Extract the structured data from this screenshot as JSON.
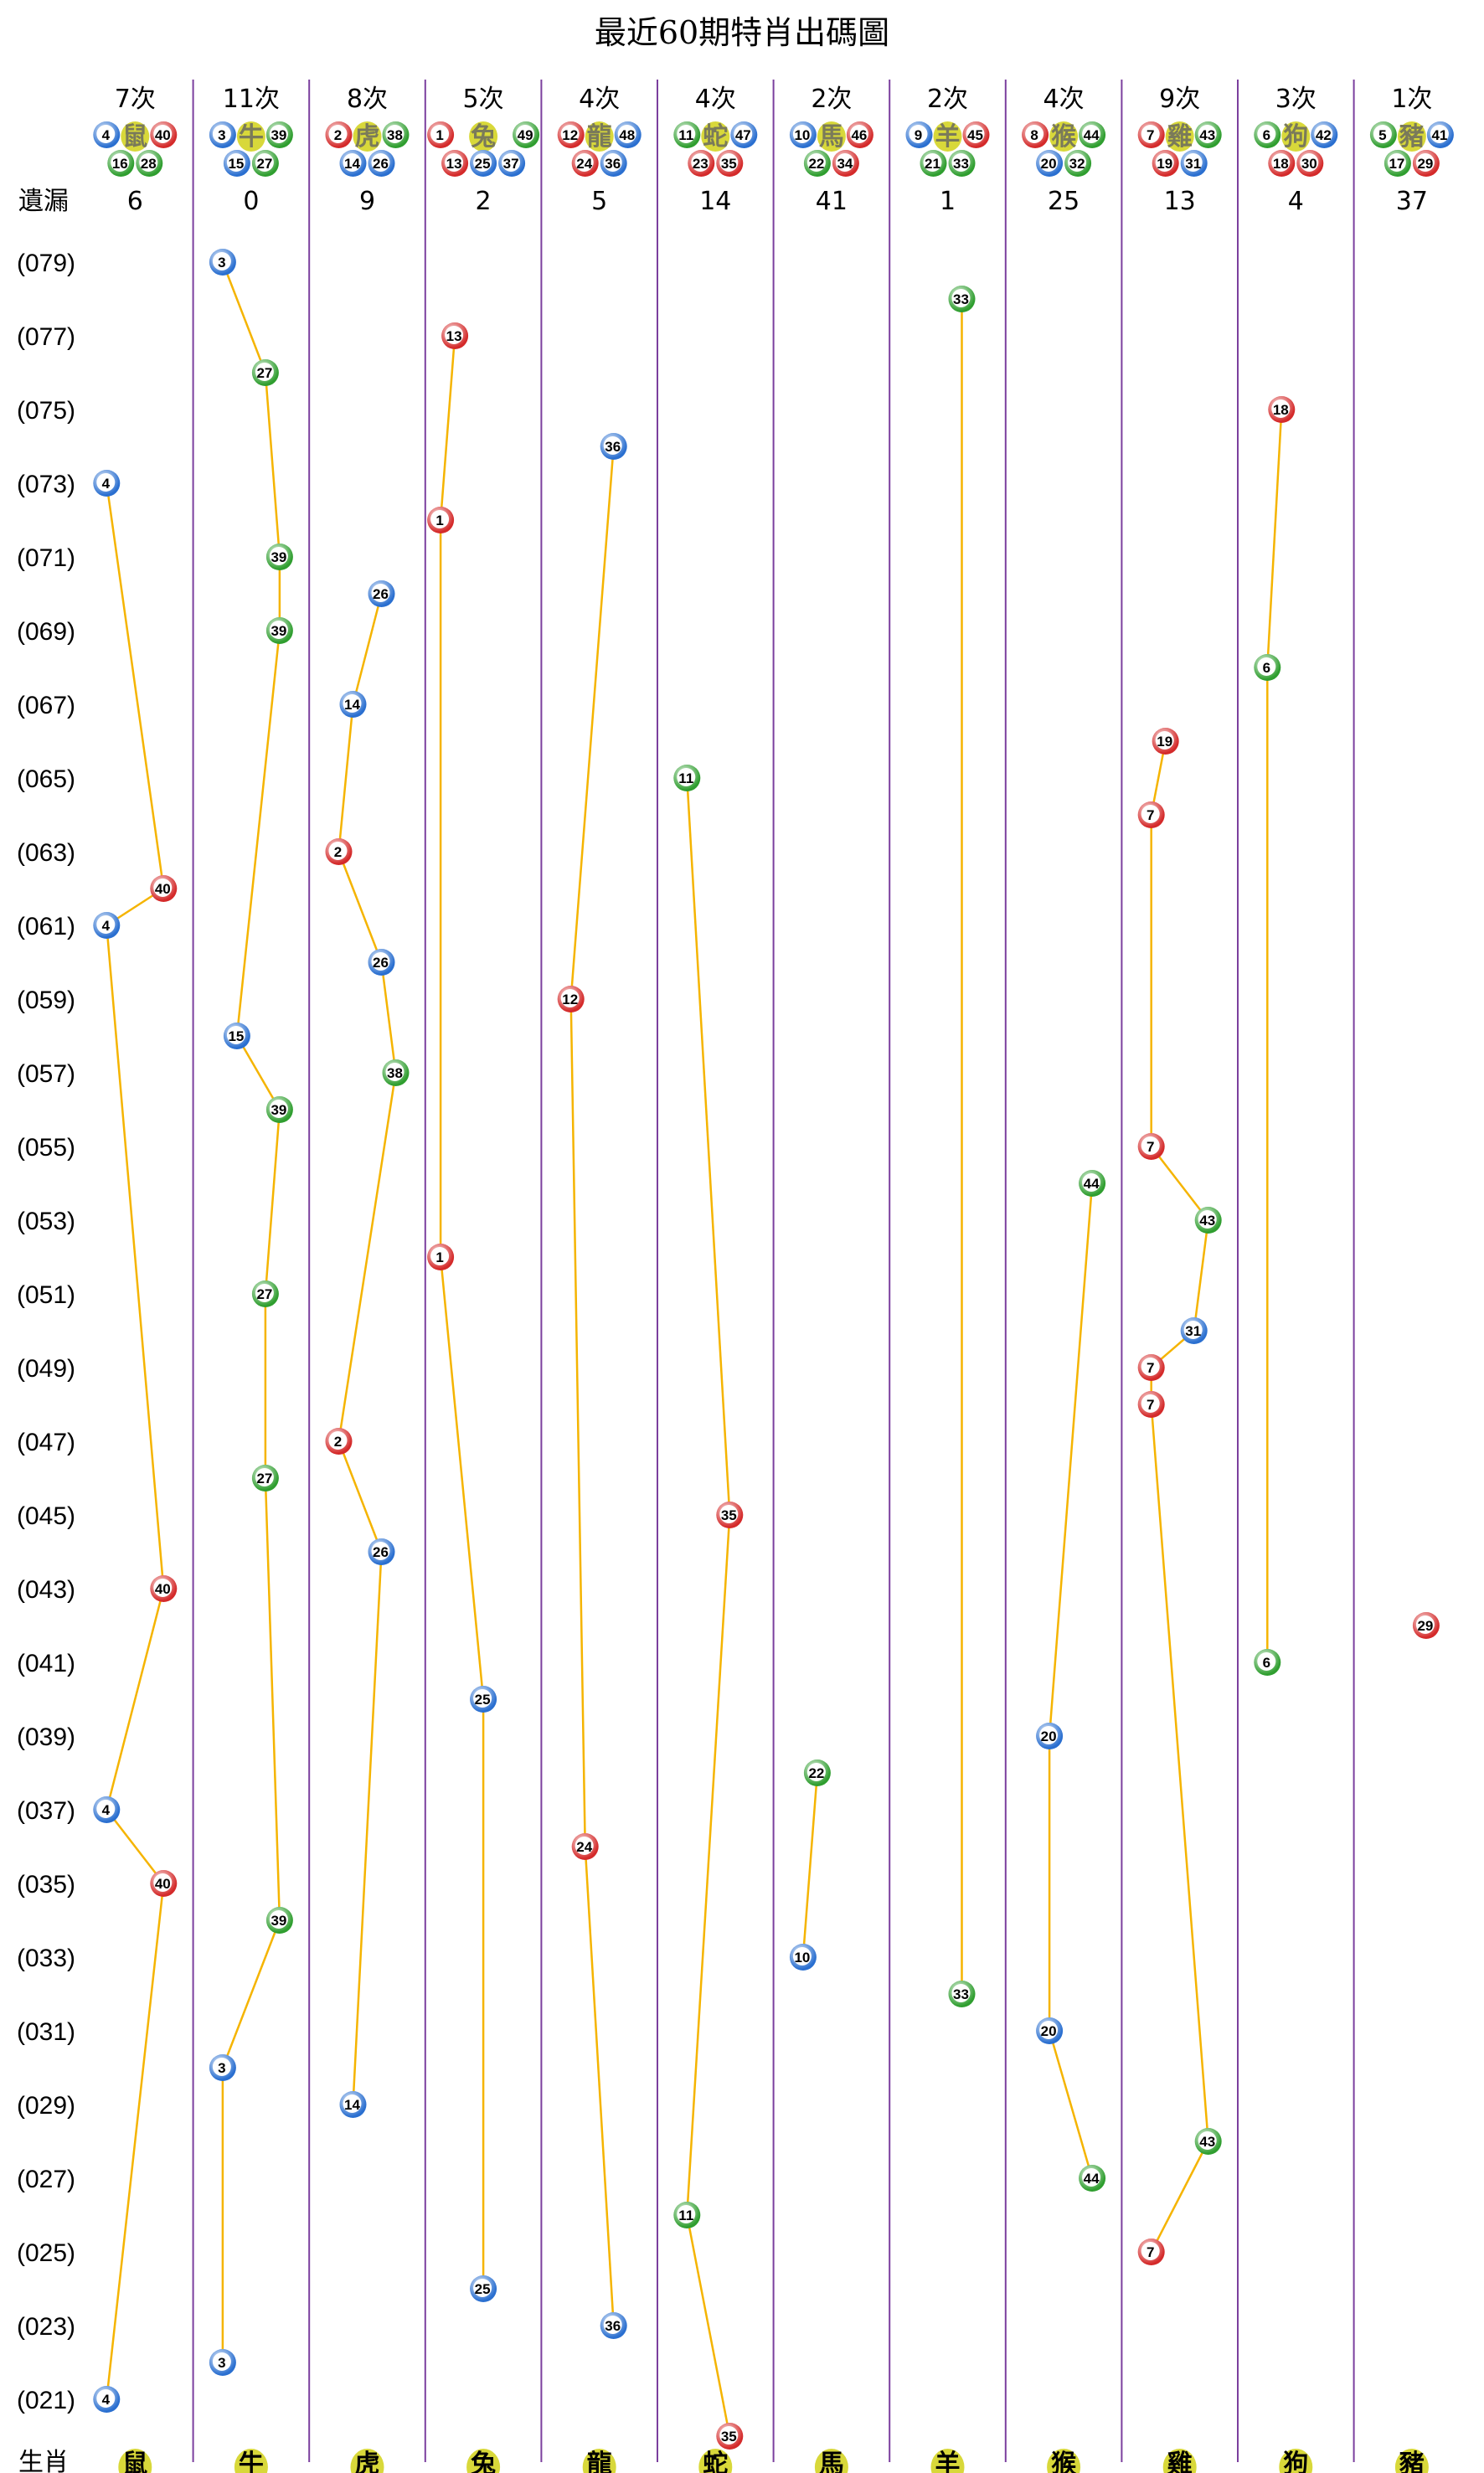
{
  "chart_data": {
    "type": "scatter",
    "title": "最近60期特肖出碼圖",
    "miss_label": "遺漏",
    "zodiac_label": "生肖",
    "count_suffix": "次",
    "colors": {
      "red": "#d42a2a",
      "blue": "#2a6fd0",
      "green": "#2f9e2f",
      "line": "#f5b400",
      "separator": "#7b3f9e",
      "zodiac_ball": "#d8d83a"
    },
    "red_numbers": [
      1,
      2,
      7,
      8,
      12,
      13,
      18,
      19,
      23,
      24,
      29,
      30,
      34,
      35,
      40,
      45,
      46
    ],
    "blue_numbers": [
      3,
      4,
      9,
      10,
      14,
      15,
      20,
      25,
      26,
      31,
      36,
      37,
      41,
      42,
      47,
      48
    ],
    "green_numbers": [
      5,
      6,
      11,
      16,
      17,
      21,
      22,
      27,
      28,
      32,
      33,
      38,
      39,
      43,
      44,
      49
    ],
    "columns": [
      {
        "name": "鼠",
        "count": "7次",
        "numbers": [
          4,
          16,
          28,
          40
        ],
        "miss": "6"
      },
      {
        "name": "牛",
        "count": "11次",
        "numbers": [
          3,
          15,
          27,
          39
        ],
        "miss": "0"
      },
      {
        "name": "虎",
        "count": "8次",
        "numbers": [
          2,
          14,
          26,
          38
        ],
        "miss": "9"
      },
      {
        "name": "兔",
        "count": "5次",
        "numbers": [
          1,
          13,
          25,
          37,
          49
        ],
        "miss": "2"
      },
      {
        "name": "龍",
        "count": "4次",
        "numbers": [
          12,
          24,
          36,
          48
        ],
        "miss": "5"
      },
      {
        "name": "蛇",
        "count": "4次",
        "numbers": [
          11,
          23,
          35,
          47
        ],
        "miss": "14"
      },
      {
        "name": "馬",
        "count": "2次",
        "numbers": [
          10,
          22,
          34,
          46
        ],
        "miss": "41"
      },
      {
        "name": "羊",
        "count": "2次",
        "numbers": [
          9,
          21,
          33,
          45
        ],
        "miss": "1"
      },
      {
        "name": "猴",
        "count": "4次",
        "numbers": [
          8,
          20,
          32,
          44
        ],
        "miss": "25"
      },
      {
        "name": "雞",
        "count": "9次",
        "numbers": [
          7,
          19,
          31,
          43
        ],
        "miss": "13"
      },
      {
        "name": "狗",
        "count": "3次",
        "numbers": [
          6,
          18,
          30,
          42
        ],
        "miss": "4"
      },
      {
        "name": "豬",
        "count": "1次",
        "numbers": [
          5,
          17,
          29,
          41
        ],
        "miss": "37"
      }
    ],
    "period_labels": [
      "(079)",
      "(077)",
      "(075)",
      "(073)",
      "(071)",
      "(069)",
      "(067)",
      "(065)",
      "(063)",
      "(061)",
      "(059)",
      "(057)",
      "(055)",
      "(053)",
      "(051)",
      "(049)",
      "(047)",
      "(045)",
      "(043)",
      "(041)",
      "(039)",
      "(037)",
      "(035)",
      "(033)",
      "(031)",
      "(029)",
      "(027)",
      "(025)",
      "(023)",
      "(021)"
    ],
    "draws": [
      {
        "period": 79,
        "number": 3
      },
      {
        "period": 78,
        "number": 33
      },
      {
        "period": 77,
        "number": 13
      },
      {
        "period": 76,
        "number": 27
      },
      {
        "period": 75,
        "number": 18
      },
      {
        "period": 74,
        "number": 36
      },
      {
        "period": 73,
        "number": 4
      },
      {
        "period": 72,
        "number": 1
      },
      {
        "period": 71,
        "number": 39
      },
      {
        "period": 70,
        "number": 26
      },
      {
        "period": 69,
        "number": 39
      },
      {
        "period": 68,
        "number": 6
      },
      {
        "period": 67,
        "number": 14
      },
      {
        "period": 66,
        "number": 19
      },
      {
        "period": 65,
        "number": 11
      },
      {
        "period": 64,
        "number": 7
      },
      {
        "period": 63,
        "number": 2
      },
      {
        "period": 62,
        "number": 40
      },
      {
        "period": 61,
        "number": 4
      },
      {
        "period": 60,
        "number": 26
      },
      {
        "period": 59,
        "number": 12
      },
      {
        "period": 58,
        "number": 15
      },
      {
        "period": 57,
        "number": 38
      },
      {
        "period": 56,
        "number": 39
      },
      {
        "period": 55,
        "number": 7
      },
      {
        "period": 54,
        "number": 44
      },
      {
        "period": 53,
        "number": 43
      },
      {
        "period": 52,
        "number": 1
      },
      {
        "period": 51,
        "number": 27
      },
      {
        "period": 50,
        "number": 31
      },
      {
        "period": 49,
        "number": 7
      },
      {
        "period": 48,
        "number": 7
      },
      {
        "period": 47,
        "number": 2
      },
      {
        "period": 46,
        "number": 27
      },
      {
        "period": 45,
        "number": 35
      },
      {
        "period": 44,
        "number": 26
      },
      {
        "period": 43,
        "number": 40
      },
      {
        "period": 42,
        "number": 29
      },
      {
        "period": 41,
        "number": 6
      },
      {
        "period": 40,
        "number": 25
      },
      {
        "period": 39,
        "number": 20
      },
      {
        "period": 38,
        "number": 22
      },
      {
        "period": 37,
        "number": 4
      },
      {
        "period": 36,
        "number": 24
      },
      {
        "period": 35,
        "number": 40
      },
      {
        "period": 34,
        "number": 39
      },
      {
        "period": 33,
        "number": 10
      },
      {
        "period": 32,
        "number": 33
      },
      {
        "period": 31,
        "number": 20
      },
      {
        "period": 30,
        "number": 3
      },
      {
        "period": 29,
        "number": 14
      },
      {
        "period": 28,
        "number": 43
      },
      {
        "period": 27,
        "number": 44
      },
      {
        "period": 26,
        "number": 11
      },
      {
        "period": 25,
        "number": 7
      },
      {
        "period": 24,
        "number": 25
      },
      {
        "period": 23,
        "number": 36
      },
      {
        "period": 22,
        "number": 3
      },
      {
        "period": 21,
        "number": 4
      },
      {
        "period": 20,
        "number": 35
      }
    ]
  }
}
